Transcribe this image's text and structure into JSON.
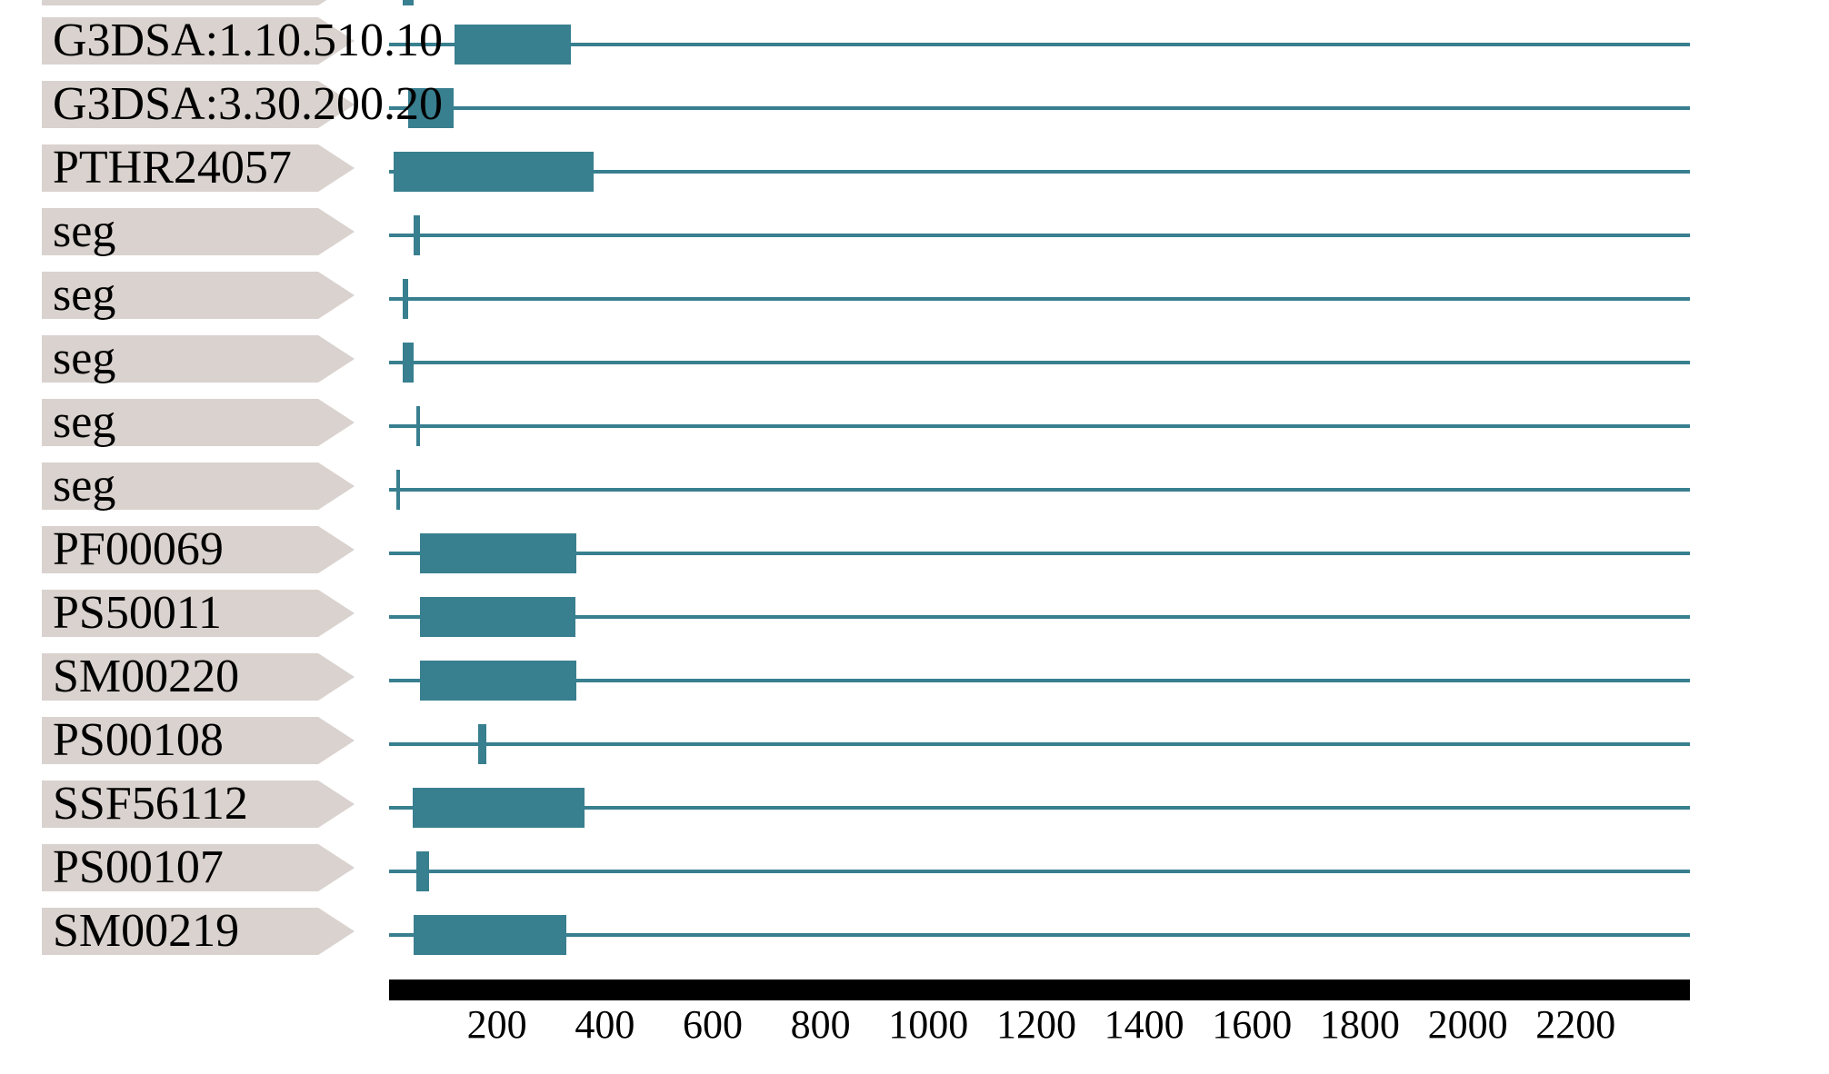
{
  "page": {
    "background": "#ffffff"
  },
  "colors": {
    "match_fill": "#387F8F",
    "sequence_line": "#387F8F",
    "label_chip": "#D9D2CE",
    "axis_bar": "#000000",
    "text": "#000000"
  },
  "chart_data": {
    "type": "bar",
    "subtype": "protein-signature-matches",
    "title": "",
    "orientation": "horizontal-intervals",
    "axis": {
      "min": 0,
      "max": 2412,
      "tick_step": 200,
      "ticks": [
        200,
        400,
        600,
        800,
        1000,
        1200,
        1400,
        1600,
        1800,
        2000,
        2200
      ]
    },
    "rows": [
      {
        "label": "",
        "kind": "site",
        "start": 25,
        "end": 45,
        "partial": true
      },
      {
        "label": "G3DSA:1.10.510.10",
        "kind": "domain",
        "start": 121,
        "end": 337
      },
      {
        "label": "G3DSA:3.30.200.20",
        "kind": "domain",
        "start": 36,
        "end": 120
      },
      {
        "label": "PTHR24057",
        "kind": "domain",
        "start": 8,
        "end": 379
      },
      {
        "label": "seg",
        "kind": "site",
        "start": 45,
        "end": 57
      },
      {
        "label": "seg",
        "kind": "site",
        "start": 25,
        "end": 36
      },
      {
        "label": "seg",
        "kind": "site",
        "start": 26,
        "end": 45
      },
      {
        "label": "seg",
        "kind": "site",
        "start": 50,
        "end": 58
      },
      {
        "label": "seg",
        "kind": "site",
        "start": 13,
        "end": 20
      },
      {
        "label": "PF00069",
        "kind": "domain",
        "start": 57,
        "end": 348
      },
      {
        "label": "PS50011",
        "kind": "domain",
        "start": 57,
        "end": 345
      },
      {
        "label": "SM00220",
        "kind": "domain",
        "start": 57,
        "end": 348
      },
      {
        "label": "PS00108",
        "kind": "site",
        "start": 165,
        "end": 180
      },
      {
        "label": "SSF56112",
        "kind": "domain",
        "start": 43,
        "end": 362
      },
      {
        "label": "PS00107",
        "kind": "site",
        "start": 50,
        "end": 75
      },
      {
        "label": "SM00219",
        "kind": "domain",
        "start": 45,
        "end": 328
      }
    ]
  }
}
